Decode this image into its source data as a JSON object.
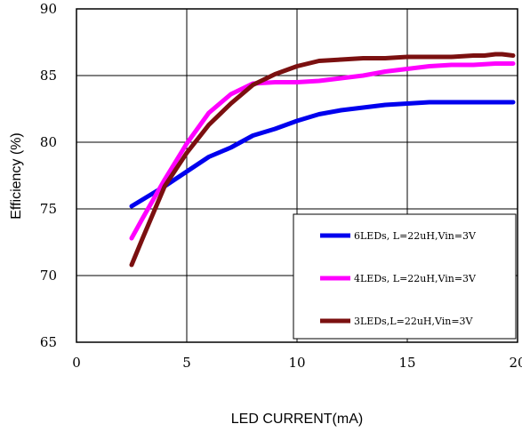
{
  "chart_data": {
    "type": "line",
    "xlabel": "LED CURRENT(mA)",
    "ylabel": "Efficiency (%)",
    "xlim": [
      0,
      20
    ],
    "ylim": [
      65,
      90
    ],
    "xticks": [
      "0",
      "5",
      "10",
      "15",
      "20"
    ],
    "yticks": [
      "65",
      "70",
      "75",
      "80",
      "85",
      "90"
    ],
    "grid": true,
    "legend_position": "bottom-right",
    "series": [
      {
        "name": "6LEDs, L=22uH,Vin=3V",
        "color": "#0000ee",
        "x": [
          2.5,
          3,
          4,
          5,
          6,
          7,
          8,
          9,
          9.5,
          10,
          11,
          12,
          13,
          14,
          15,
          16,
          17,
          18,
          19,
          19.8
        ],
        "y": [
          75.2,
          75.7,
          76.7,
          77.8,
          78.9,
          79.6,
          80.5,
          81.0,
          81.3,
          81.6,
          82.1,
          82.4,
          82.6,
          82.8,
          82.9,
          83.0,
          83.0,
          83.0,
          83.0,
          83.0
        ]
      },
      {
        "name": "4LEDs, L=22uH,Vin=3V",
        "color": "#ff00ff",
        "x": [
          2.5,
          3,
          4,
          5,
          6,
          7,
          8,
          9,
          10,
          11,
          12,
          13,
          14,
          15,
          16,
          17,
          18,
          19,
          19.8
        ],
        "y": [
          72.8,
          74.3,
          77.2,
          79.9,
          82.2,
          83.6,
          84.4,
          84.5,
          84.5,
          84.6,
          84.8,
          85.0,
          85.3,
          85.5,
          85.7,
          85.8,
          85.8,
          85.9,
          85.9
        ]
      },
      {
        "name": "3LEDs,L=22uH,Vin=3V",
        "color": "#7b1010",
        "x": [
          2.5,
          3,
          4,
          5,
          6,
          7,
          8,
          9,
          10,
          11,
          12,
          13,
          14,
          15,
          16,
          17,
          18,
          18.5,
          19,
          19.3,
          19.8
        ],
        "y": [
          70.8,
          72.8,
          76.7,
          79.2,
          81.3,
          82.9,
          84.3,
          85.1,
          85.7,
          86.1,
          86.2,
          86.3,
          86.3,
          86.4,
          86.4,
          86.4,
          86.5,
          86.5,
          86.6,
          86.6,
          86.5
        ]
      }
    ]
  }
}
